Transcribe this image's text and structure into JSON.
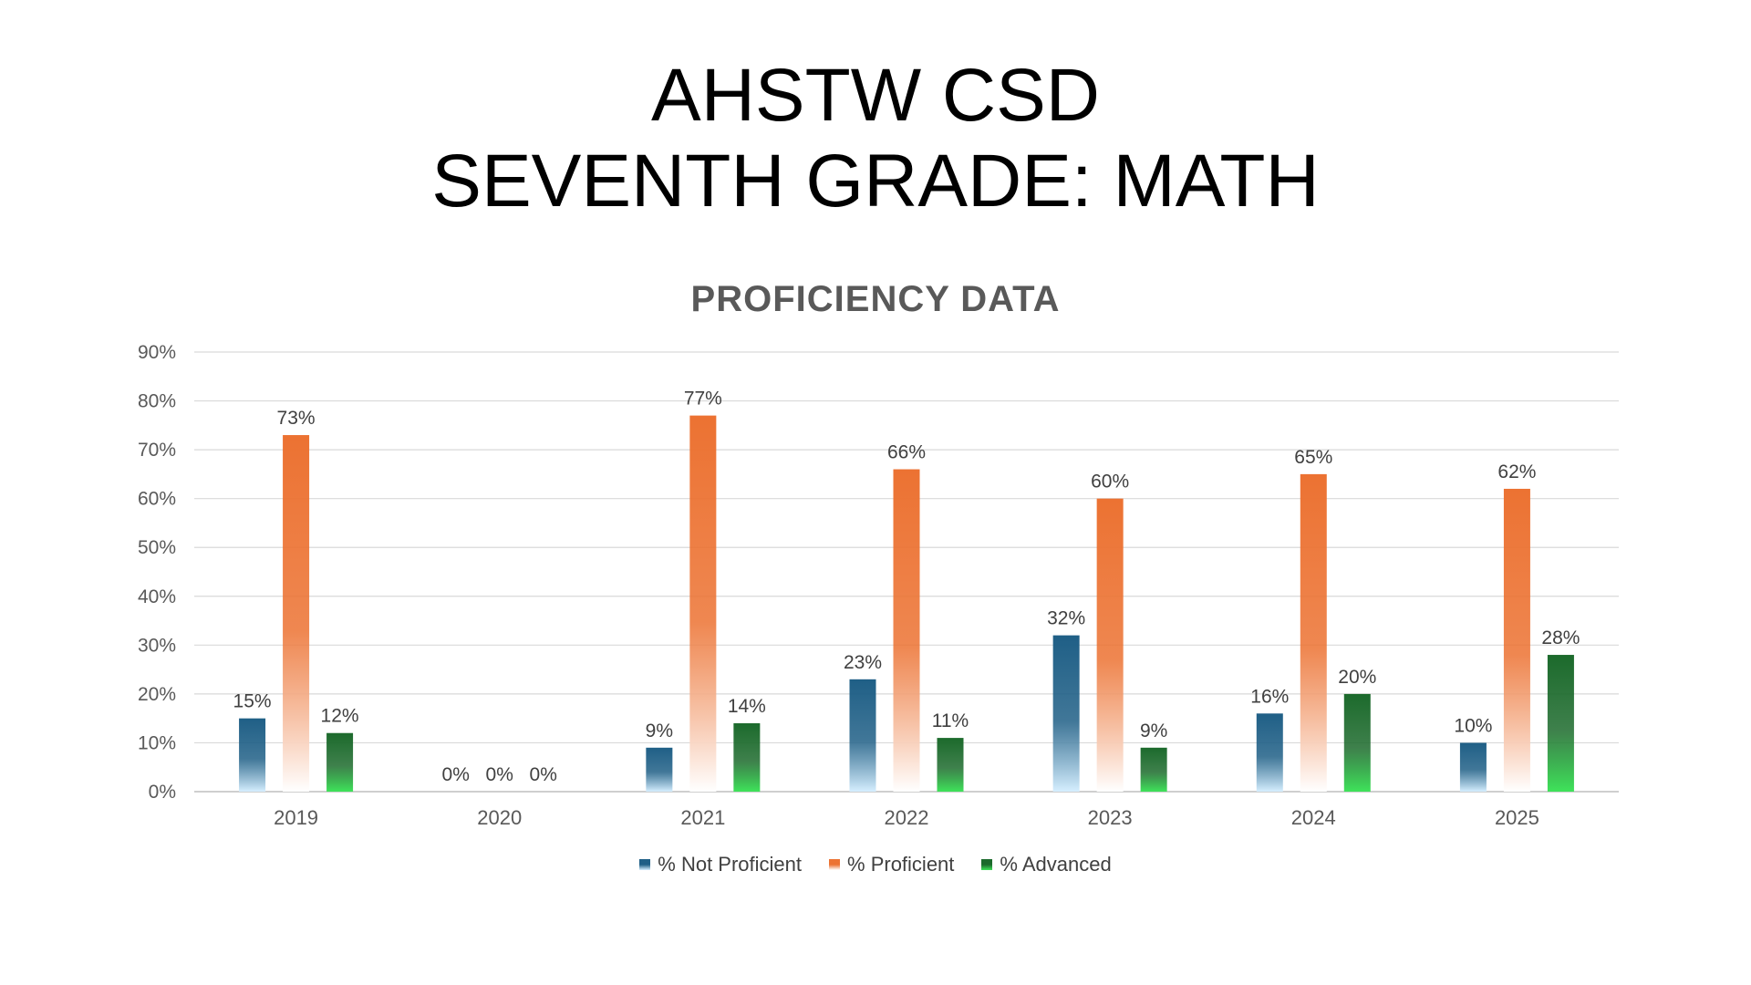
{
  "slide": {
    "title_line1": "AHSTW CSD",
    "title_line2": "SEVENTH GRADE: MATH"
  },
  "chart_data": {
    "type": "bar",
    "title": "PROFICIENCY DATA",
    "xlabel": "",
    "ylabel": "",
    "categories": [
      "2019",
      "2020",
      "2021",
      "2022",
      "2023",
      "2024",
      "2025"
    ],
    "y_ticks": [
      "0%",
      "10%",
      "20%",
      "30%",
      "40%",
      "50%",
      "60%",
      "70%",
      "80%",
      "90%"
    ],
    "ylim": [
      0,
      90
    ],
    "grid": true,
    "legend_position": "bottom",
    "series": [
      {
        "name": "% Not Proficient",
        "values": [
          15,
          0,
          9,
          23,
          32,
          16,
          10
        ],
        "labels": [
          "15%",
          "0%",
          "9%",
          "23%",
          "32%",
          "16%",
          "10%"
        ],
        "color_top": "#1f5f86",
        "color_bottom": "#d6efff"
      },
      {
        "name": "% Proficient",
        "values": [
          73,
          0,
          77,
          66,
          60,
          65,
          62
        ],
        "labels": [
          "73%",
          "0%",
          "77%",
          "66%",
          "60%",
          "65%",
          "62%"
        ],
        "color_top": "#ec7232",
        "color_bottom": "#ffffff"
      },
      {
        "name": "% Advanced",
        "values": [
          12,
          0,
          14,
          11,
          9,
          20,
          28
        ],
        "labels": [
          "12%",
          "0%",
          "14%",
          "11%",
          "9%",
          "20%",
          "28%"
        ],
        "color_top": "#1c6a2c",
        "color_bottom": "#3fe35a"
      }
    ]
  }
}
